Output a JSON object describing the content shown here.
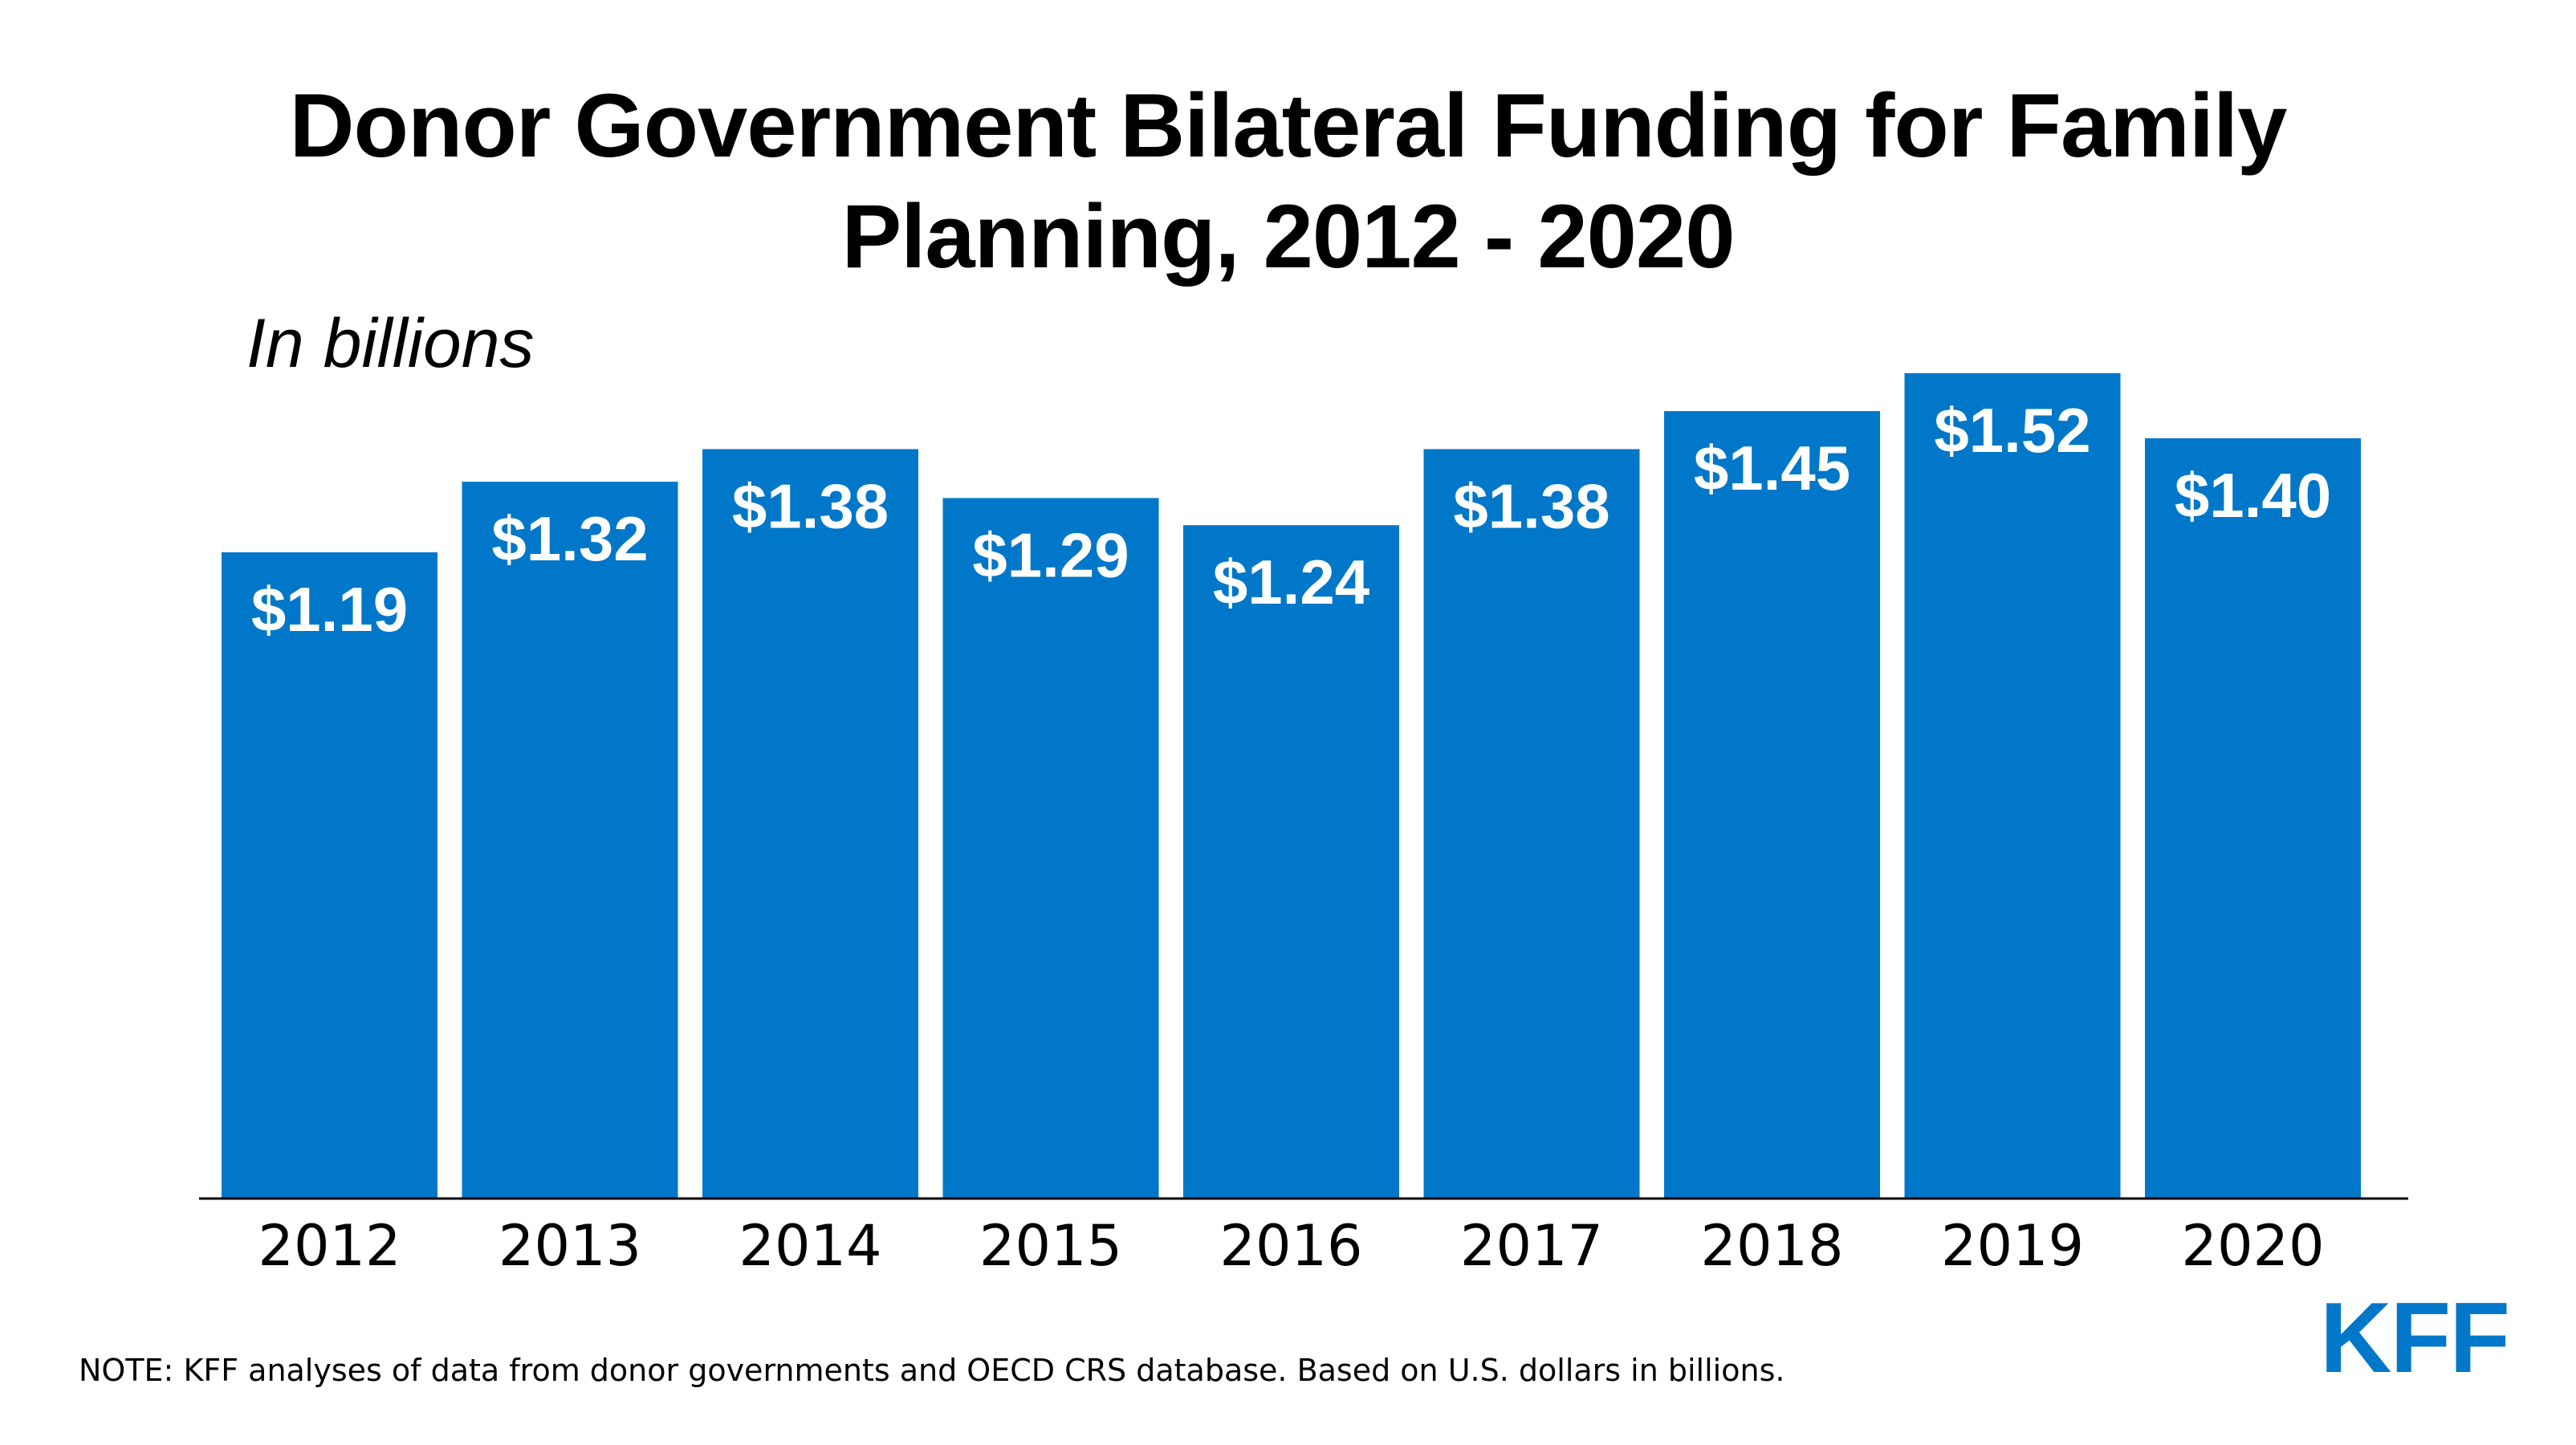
{
  "chart_data": {
    "type": "bar",
    "title": "Donor Government Bilateral Funding for Family Planning, 2012 - 2020",
    "subtitle": "In billions",
    "categories": [
      "2012",
      "2013",
      "2014",
      "2015",
      "2016",
      "2017",
      "2018",
      "2019",
      "2020"
    ],
    "values": [
      1.19,
      1.32,
      1.38,
      1.29,
      1.24,
      1.38,
      1.45,
      1.52,
      1.4
    ],
    "data_labels": [
      "$1.19",
      "$1.32",
      "$1.38",
      "$1.29",
      "$1.24",
      "$1.38",
      "$1.45",
      "$1.52",
      "$1.40"
    ],
    "xlabel": "",
    "ylabel": "",
    "ylim": [
      0,
      1.6
    ],
    "grid": false,
    "legend": "none",
    "bar_color": "#0077c8",
    "label_color": "#ffffff"
  },
  "note": "NOTE: KFF analyses of data from donor governments and OECD CRS database. Based on U.S. dollars in billions.",
  "logo": {
    "text": "KFF",
    "color": "#0077c8"
  }
}
